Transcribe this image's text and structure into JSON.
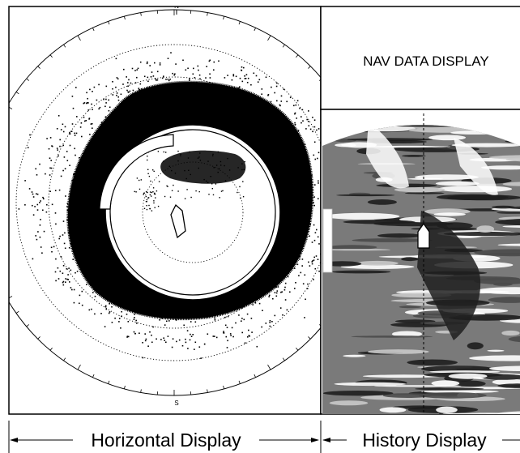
{
  "horizontal_display": {
    "north_label": "N",
    "south_label": "S"
  },
  "nav_data_panel": {
    "label": "NAV DATA DISPLAY"
  },
  "captions": {
    "horizontal": "Horizontal Display",
    "history": "History Display"
  },
  "colors": {
    "outline": "#000000",
    "echo": "#000000",
    "history_dark": "#1e1e1e",
    "history_mid": "#7a7a7a",
    "history_light": "#c9c9c9",
    "background": "#ffffff"
  }
}
